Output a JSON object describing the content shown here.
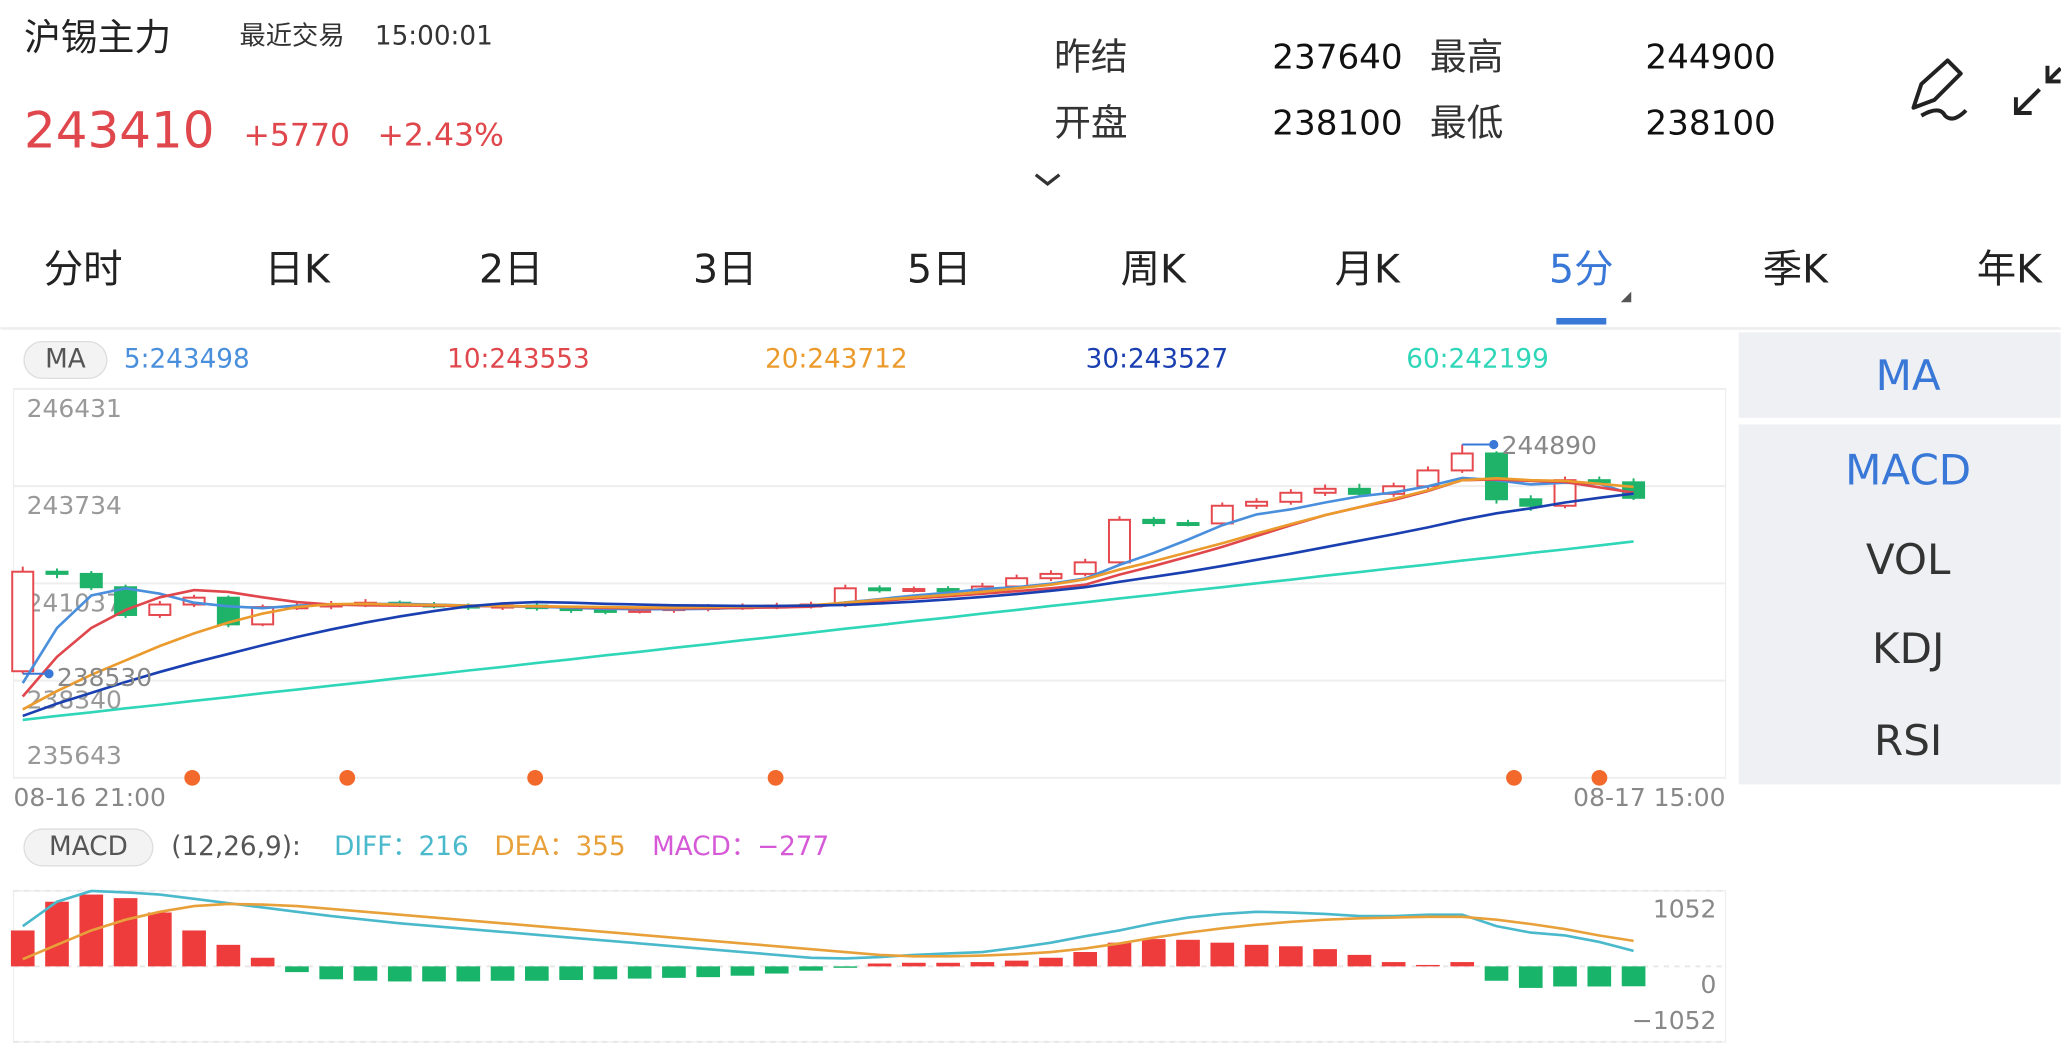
{
  "header": {
    "symbol": "沪锡主力",
    "last_trade_label": "最近交易",
    "last_trade_time": "15:00:01",
    "price": "243410",
    "change": "+5770",
    "change_pct": "+2.43%"
  },
  "stats": [
    {
      "label": "昨结",
      "value": "237640"
    },
    {
      "label": "最高",
      "value": "244900"
    },
    {
      "label": "开盘",
      "value": "238100"
    },
    {
      "label": "最低",
      "value": "238100"
    }
  ],
  "tabs": [
    "分时",
    "日K",
    "2日",
    "3日",
    "5日",
    "周K",
    "月K",
    "5分",
    "季K",
    "年K"
  ],
  "active_tab": 7,
  "indicator_panel": [
    "MA",
    "MACD",
    "VOL",
    "KDJ",
    "RSI"
  ],
  "active_indicators": [
    0,
    1
  ],
  "chart_data": [
    {
      "type": "candlestick",
      "legend_label": "MA",
      "x_start_label": "08-16 21:00",
      "x_end_label": "08-17 15:00",
      "up_color": "#e5484d",
      "down_color": "#1fb36a",
      "ylim": [
        235643,
        246431
      ],
      "yticks": [
        246431,
        243734,
        241037,
        238340,
        235643
      ],
      "grid": true,
      "open": [
        238600,
        241360,
        241300,
        240930,
        240160,
        240450,
        240640,
        239900,
        240380,
        240400,
        240450,
        240500,
        240450,
        240420,
        240380,
        240420,
        240350,
        240300,
        240270,
        240300,
        240350,
        240380,
        240400,
        240420,
        240450,
        240900,
        240850,
        240880,
        240820,
        240950,
        241180,
        241300,
        241620,
        242800,
        242710,
        242700,
        243190,
        243300,
        243550,
        243660,
        243520,
        243730,
        244170,
        244640,
        243370,
        243190,
        243900,
        243840
      ],
      "high": [
        241500,
        241450,
        241380,
        241000,
        240550,
        240720,
        240700,
        240450,
        240500,
        240550,
        240600,
        240560,
        240520,
        240480,
        240500,
        240480,
        240420,
        240380,
        240380,
        240420,
        240460,
        240480,
        240500,
        240530,
        241000,
        240980,
        240950,
        240960,
        241050,
        241280,
        241400,
        241720,
        242900,
        242880,
        242800,
        243280,
        243400,
        243650,
        243780,
        243800,
        243830,
        244280,
        244890,
        244700,
        243480,
        244000,
        244000,
        243950
      ],
      "low": [
        238530,
        241180,
        240850,
        240080,
        240080,
        240380,
        239820,
        239850,
        240300,
        240320,
        240380,
        240380,
        240350,
        240300,
        240300,
        240280,
        240220,
        240180,
        240200,
        240220,
        240260,
        240300,
        240320,
        240340,
        240380,
        240780,
        240780,
        240760,
        240740,
        240880,
        241100,
        241230,
        241550,
        242620,
        242620,
        242650,
        243100,
        243220,
        243460,
        243420,
        243440,
        243650,
        244100,
        243250,
        243050,
        243120,
        243760,
        243350
      ],
      "close": [
        241360,
        241300,
        240930,
        240160,
        240450,
        240640,
        239900,
        240380,
        240400,
        240450,
        240500,
        240450,
        240420,
        240380,
        240420,
        240350,
        240300,
        240270,
        240300,
        240350,
        240380,
        240400,
        240420,
        240450,
        240900,
        240850,
        240880,
        240820,
        240950,
        241180,
        241300,
        241620,
        242800,
        242710,
        242700,
        243190,
        243300,
        243550,
        243660,
        243520,
        243730,
        244170,
        244640,
        243370,
        243190,
        243900,
        243840,
        243410
      ],
      "max_label": 244890,
      "min_label": 238530,
      "series": [
        {
          "name": "5:243498",
          "color": "#4a8fdc",
          "values": [
            238270,
            239800,
            240700,
            240900,
            240750,
            240500,
            240400,
            240350,
            240420,
            240450,
            240460,
            240470,
            240450,
            240420,
            240400,
            240390,
            240360,
            240330,
            240320,
            240320,
            240330,
            240360,
            240380,
            240400,
            240510,
            240600,
            240700,
            240780,
            240880,
            240930,
            241030,
            241170,
            241550,
            241880,
            242250,
            242650,
            242950,
            243090,
            243280,
            243450,
            243560,
            243730,
            243960,
            243900,
            243780,
            243830,
            243800,
            243498
          ]
        },
        {
          "name": "10:243553",
          "color": "#e0474c",
          "values": [
            237900,
            239000,
            239800,
            240300,
            240650,
            240850,
            240800,
            240650,
            240520,
            240450,
            240430,
            240420,
            240420,
            240410,
            240400,
            240400,
            240380,
            240360,
            240350,
            240350,
            240350,
            240360,
            240370,
            240390,
            240470,
            240550,
            240620,
            240680,
            240750,
            240820,
            240900,
            241000,
            241280,
            241520,
            241780,
            242050,
            242350,
            242650,
            242930,
            243150,
            243350,
            243600,
            243900,
            243920,
            243880,
            243850,
            243700,
            243553
          ]
        },
        {
          "name": "20:243712",
          "color": "#eb9a2c",
          "values": [
            237540,
            238050,
            238500,
            238900,
            239300,
            239650,
            239950,
            240200,
            240380,
            240460,
            240470,
            240450,
            240440,
            240420,
            240410,
            240400,
            240390,
            240380,
            240370,
            240370,
            240380,
            240390,
            240410,
            240430,
            240500,
            240580,
            240650,
            240720,
            240800,
            240900,
            241000,
            241150,
            241420,
            241650,
            241900,
            242150,
            242420,
            242680,
            242930,
            243150,
            243380,
            243620,
            243900,
            243950,
            243900,
            243880,
            243800,
            243712
          ]
        },
        {
          "name": "30:243527",
          "color": "#1a3fb0",
          "values": [
            237360,
            237700,
            238000,
            238300,
            238580,
            238840,
            239080,
            239320,
            239550,
            239760,
            239950,
            240120,
            240270,
            240400,
            240480,
            240520,
            240500,
            240470,
            240450,
            240430,
            240420,
            240410,
            240410,
            240420,
            240440,
            240480,
            240530,
            240590,
            240660,
            240740,
            240830,
            240930,
            241080,
            241220,
            241360,
            241520,
            241690,
            241860,
            242040,
            242220,
            242400,
            242590,
            242800,
            242980,
            243120,
            243280,
            243410,
            243527
          ]
        },
        {
          "name": "60:242199",
          "color": "#2fd6b8",
          "values": [
            237250,
            237360,
            237460,
            237570,
            237670,
            237780,
            237880,
            237990,
            238090,
            238200,
            238300,
            238410,
            238510,
            238620,
            238720,
            238830,
            238930,
            239040,
            239140,
            239250,
            239350,
            239460,
            239560,
            239670,
            239780,
            239880,
            239990,
            240090,
            240200,
            240300,
            240410,
            240510,
            240620,
            240720,
            240830,
            240930,
            241040,
            241140,
            241250,
            241350,
            241460,
            241560,
            241670,
            241770,
            241880,
            241980,
            242090,
            242199
          ]
        }
      ]
    },
    {
      "type": "macd",
      "legend_label": "MACD",
      "params": "(12,26,9):",
      "ylim": [
        -1052,
        1052
      ],
      "yticks": [
        1052,
        0,
        {
          "value": -1052,
          "label": "−1052"
        }
      ],
      "grid": true,
      "up_color": "#ee3b3b",
      "down_color": "#17b46a",
      "series": [
        {
          "name": "DIFF：216",
          "color": "#4ab9cc",
          "values": [
            560,
            900,
            1050,
            1030,
            1000,
            940,
            880,
            820,
            760,
            700,
            650,
            600,
            560,
            520,
            480,
            440,
            400,
            360,
            320,
            280,
            240,
            200,
            160,
            120,
            110,
            130,
            160,
            180,
            200,
            260,
            330,
            420,
            500,
            600,
            680,
            730,
            760,
            750,
            730,
            700,
            700,
            720,
            720,
            560,
            470,
            430,
            340,
            216
          ]
        },
        {
          "name": "DEA：355",
          "color": "#e8a13a",
          "values": [
            100,
            300,
            500,
            650,
            760,
            840,
            870,
            860,
            840,
            800,
            760,
            720,
            680,
            640,
            600,
            560,
            520,
            480,
            440,
            400,
            360,
            320,
            280,
            240,
            200,
            160,
            140,
            140,
            150,
            170,
            200,
            250,
            320,
            400,
            470,
            530,
            580,
            620,
            650,
            670,
            680,
            690,
            690,
            650,
            590,
            520,
            430,
            355
          ]
        },
        {
          "name": "MACD：−277",
          "color": "#d65ad8",
          "bars": true,
          "values": [
            500,
            900,
            1000,
            950,
            750,
            500,
            300,
            120,
            -80,
            -180,
            -200,
            -210,
            -210,
            -210,
            -200,
            -200,
            -190,
            -180,
            -170,
            -160,
            -150,
            -130,
            -100,
            -60,
            -20,
            40,
            50,
            50,
            60,
            80,
            120,
            200,
            330,
            380,
            370,
            330,
            300,
            280,
            240,
            160,
            60,
            20,
            60,
            -200,
            -300,
            -280,
            -280,
            -277
          ]
        }
      ]
    }
  ]
}
